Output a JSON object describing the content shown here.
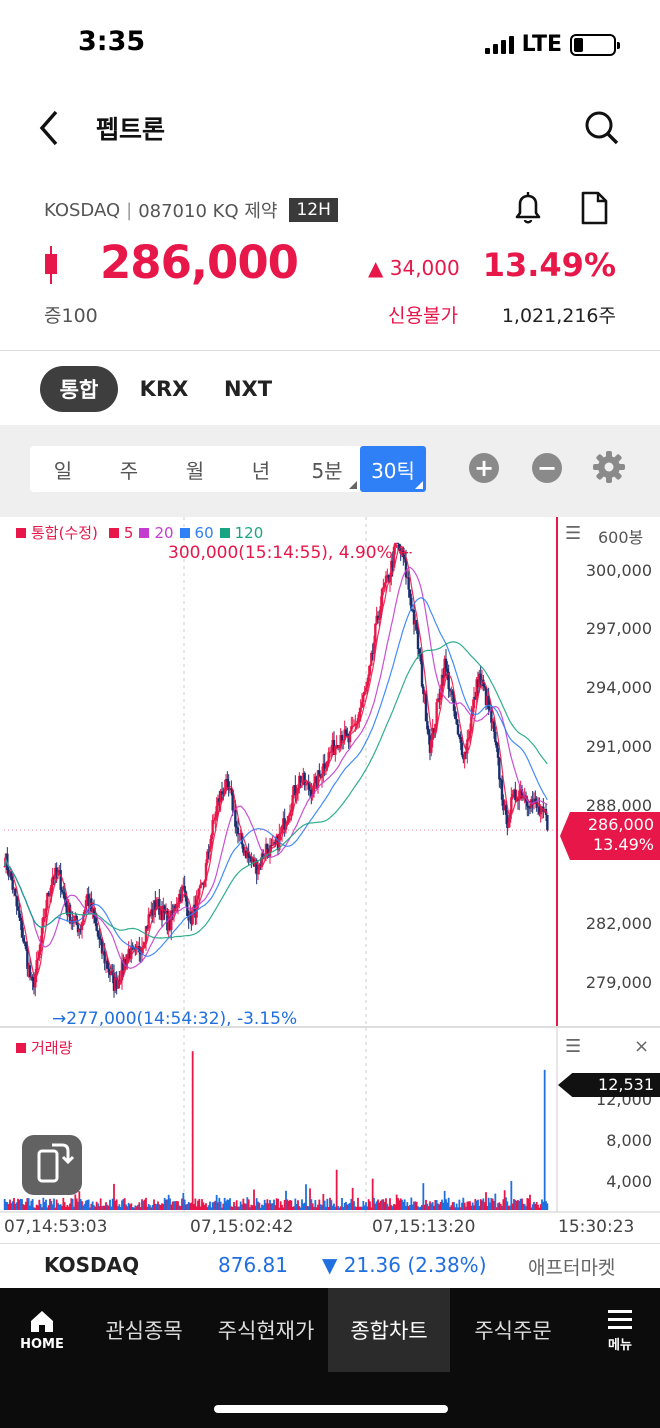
{
  "status": {
    "time": "3:35",
    "network": "LTE"
  },
  "header": {
    "title": "펩트론"
  },
  "stock": {
    "market": "KOSDAQ",
    "separator": "|",
    "code_info": "087010 KQ 제약",
    "session_badge": "12H",
    "price": "286,000",
    "change": "▲ 34,000",
    "change_pct": "13.49%",
    "margin": "증100",
    "credit": "신용불가",
    "volume": "1,021,216주",
    "up_color": "#e8174a",
    "down_color": "#1f6fe0"
  },
  "market_tabs": [
    {
      "label": "통합",
      "active": true
    },
    {
      "label": "KRX",
      "active": false
    },
    {
      "label": "NXT",
      "active": false
    }
  ],
  "periods": [
    {
      "label": "일",
      "active": false,
      "has_menu": false
    },
    {
      "label": "주",
      "active": false,
      "has_menu": false
    },
    {
      "label": "월",
      "active": false,
      "has_menu": false
    },
    {
      "label": "년",
      "active": false,
      "has_menu": false
    },
    {
      "label": "5분",
      "active": false,
      "has_menu": true
    },
    {
      "label": "30틱",
      "active": true,
      "has_menu": true
    }
  ],
  "chart": {
    "legend": {
      "main": "통합(수정)",
      "ma": [
        "5",
        "20",
        "60",
        "120"
      ]
    },
    "bar_count": "600봉",
    "high_annotation": "300,000(15:14:55), 4.90%",
    "low_annotation": "277,000(14:54:32), -3.15%",
    "price_tag": {
      "price": "286,000",
      "pct": "13.49%"
    },
    "volume_legend": "거래량",
    "volume_tag": "12,531",
    "times": [
      "07,14:53:03",
      "07,15:02:42",
      "07,15:13:20",
      "15:30:23"
    ]
  },
  "chart_data": [
    {
      "type": "candlestick",
      "title": "통합(수정)",
      "y_ticks": [
        300000,
        297000,
        294000,
        291000,
        288000,
        282000,
        279000
      ],
      "y_tick_labels": [
        "300,000",
        "297,000",
        "294,000",
        "291,000",
        "288,000",
        "282,000",
        "279,000"
      ],
      "ylim": [
        276500,
        301200
      ],
      "x_tick_labels": [
        "07,14:53:03",
        "07,15:02:42",
        "07,15:13:20",
        "15:30:23"
      ],
      "close_path": [
        284700,
        283500,
        281800,
        280200,
        278200,
        279800,
        282300,
        283800,
        283700,
        282200,
        281500,
        281200,
        282800,
        281600,
        280200,
        279300,
        278400,
        279100,
        280100,
        279800,
        280500,
        281700,
        282400,
        282000,
        281300,
        282600,
        283100,
        281600,
        282300,
        283500,
        285700,
        287300,
        288200,
        287600,
        285700,
        285000,
        284400,
        284200,
        285200,
        284900,
        285600,
        286700,
        287700,
        288600,
        288100,
        288000,
        288900,
        289600,
        290100,
        290800,
        290300,
        291100,
        292200,
        293300,
        295800,
        297600,
        298500,
        300000,
        299400,
        297500,
        295500,
        292700,
        290000,
        292100,
        294200,
        292700,
        290500,
        289700,
        291600,
        293600,
        292600,
        291100,
        288800,
        286300,
        287500,
        288000,
        287600,
        287300,
        286800,
        286500
      ],
      "high": 300000,
      "low": 277000,
      "last": 286000,
      "ma_periods": [
        5,
        20,
        60,
        120
      ],
      "colors": {
        "up": "#e8174a",
        "down": "#1a2f6e",
        "ma5": "#e8174a",
        "ma20": "#c43ccf",
        "ma60": "#2f7ff7",
        "ma120": "#1aa582"
      }
    },
    {
      "type": "bar",
      "title": "거래량",
      "y_ticks": [
        12000,
        8000,
        4000
      ],
      "y_tick_labels": [
        "12,000",
        "8,000",
        "4,000"
      ],
      "ylim": [
        0,
        15200
      ],
      "last_volume": 12531,
      "spikes": [
        {
          "bar_index": 141,
          "value": 14200,
          "color": "#e8174a"
        },
        {
          "bar_index": 249,
          "value": 3600,
          "color": "#e8174a"
        },
        {
          "bar_index": 276,
          "value": 2800,
          "color": "#e8174a"
        },
        {
          "bar_index": 226,
          "value": 2300,
          "color": "#1f6fe0"
        },
        {
          "bar_index": 314,
          "value": 2400,
          "color": "#1f6fe0"
        },
        {
          "bar_index": 380,
          "value": 2600,
          "color": "#1f6fe0"
        },
        {
          "bar_index": 405,
          "value": 12531,
          "color": "#1f6fe0"
        }
      ]
    }
  ],
  "index_bar": {
    "name": "KOSDAQ",
    "value": "876.81",
    "change": "▼ 21.36 (2.38%)",
    "after_market": "애프터마켓"
  },
  "bottom_nav": [
    {
      "label": "HOME",
      "icon": "home-icon"
    },
    {
      "label": "관심종목"
    },
    {
      "label": "주식현재가"
    },
    {
      "label": "종합차트",
      "active": true
    },
    {
      "label": "주식주문"
    },
    {
      "label": "메뉴",
      "icon": "menu-icon"
    }
  ]
}
